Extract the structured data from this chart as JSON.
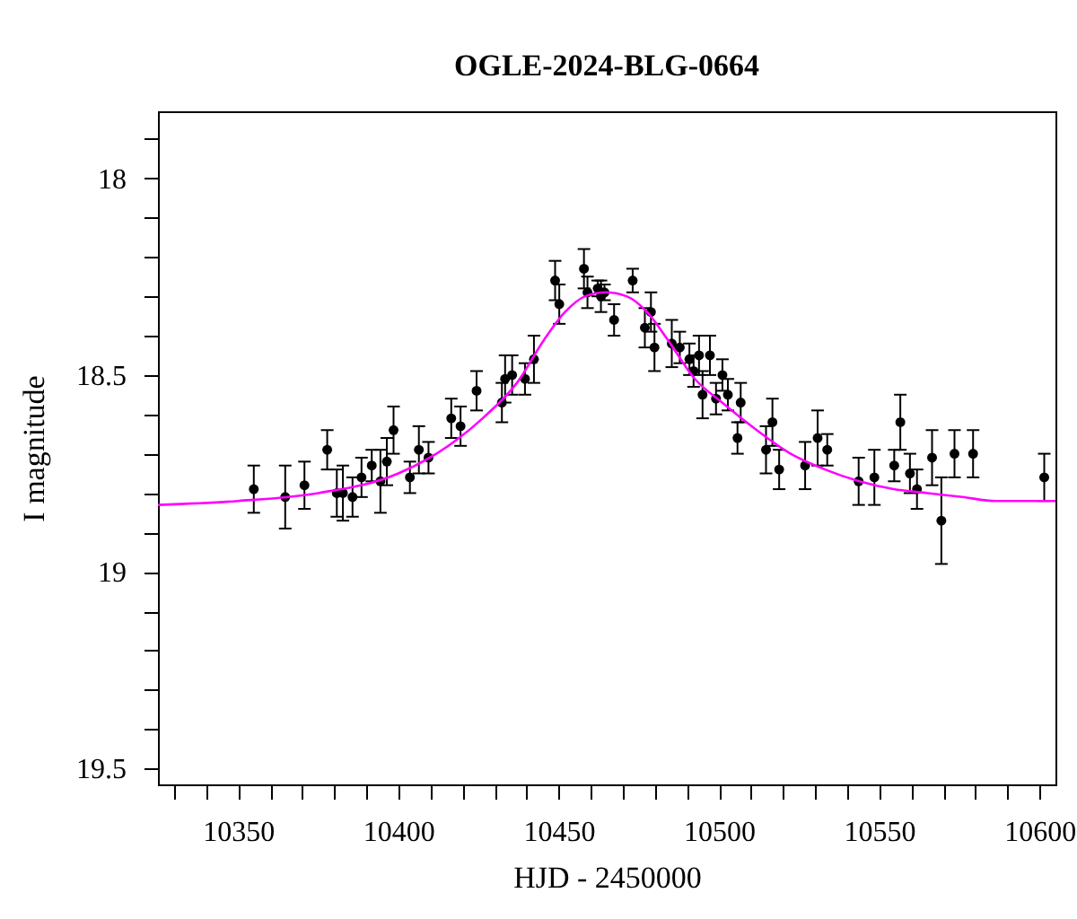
{
  "chart_data": {
    "type": "scatter",
    "title": "OGLE-2024-BLG-0664",
    "xlabel": "HJD - 2450000",
    "ylabel": "I magnitude",
    "xlim": [
      10325,
      10605
    ],
    "ylim": [
      19.54,
      17.83
    ],
    "xticks": [
      {
        "value": 10330,
        "label": null
      },
      {
        "value": 10340,
        "label": null
      },
      10350,
      {
        "value": 10360,
        "label": null
      },
      {
        "value": 10370,
        "label": null
      },
      {
        "value": 10380,
        "label": null
      },
      {
        "value": 10390,
        "label": null
      },
      10400,
      {
        "value": 10410,
        "label": null
      },
      {
        "value": 10420,
        "label": null
      },
      {
        "value": 10430,
        "label": null
      },
      {
        "value": 10440,
        "label": null
      },
      10450,
      {
        "value": 10460,
        "label": null
      },
      {
        "value": 10470,
        "label": null
      },
      {
        "value": 10480,
        "label": null
      },
      {
        "value": 10490,
        "label": null
      },
      10500,
      {
        "value": 10510,
        "label": null
      },
      {
        "value": 10520,
        "label": null
      },
      {
        "value": 10530,
        "label": null
      },
      {
        "value": 10540,
        "label": null
      },
      10550,
      {
        "value": 10560,
        "label": null
      },
      {
        "value": 10570,
        "label": null
      },
      {
        "value": 10580,
        "label": null
      },
      {
        "value": 10590,
        "label": null
      },
      10600
    ],
    "yticks": [
      {
        "value": 17.9,
        "label": null
      },
      18,
      {
        "value": 18.1,
        "label": null
      },
      {
        "value": 18.2,
        "label": null
      },
      {
        "value": 18.3,
        "label": null
      },
      {
        "value": 18.4,
        "label": null
      },
      18.5,
      {
        "value": 18.6,
        "label": null
      },
      {
        "value": 18.7,
        "label": null
      },
      {
        "value": 18.8,
        "label": null
      },
      {
        "value": 18.9,
        "label": null
      },
      19,
      {
        "value": 19.1,
        "label": null
      },
      {
        "value": 19.2,
        "label": null
      },
      {
        "value": 19.3,
        "label": null
      },
      {
        "value": 19.4,
        "label": null
      },
      19.5
    ],
    "series": [
      {
        "color": "#000000",
        "marker": "circle",
        "x": [
          10354.9,
          10364.7,
          10370.7,
          10377.8,
          10380.8,
          10382.7,
          10385.7,
          10388.5,
          10391.7,
          10394.4,
          10396.4,
          10398.5,
          10403.6,
          10406.4,
          10409.4,
          10416.5,
          10419.4,
          10424.4,
          10432.3,
          10433.3,
          10435.5,
          10439.5,
          10442.3,
          10448.9,
          10450.2,
          10457.9,
          10459.0,
          10462.2,
          10463.2,
          10464.3,
          10467.3,
          10473.1,
          10476.9,
          10478.8,
          10479.9,
          10485.3,
          10487.8,
          10490.8,
          10492.1,
          10493.8,
          10494.9,
          10497.2,
          10499.1,
          10501.1,
          10502.8,
          10506.8,
          10505.8,
          10514.7,
          10516.7,
          10518.8,
          10526.9,
          10530.8,
          10533.8,
          10543.6,
          10548.5,
          10554.7,
          10556.6,
          10559.6,
          10561.8,
          10566.5,
          10569.4,
          10573.5,
          10579.3,
          10601.5
        ],
        "values": [
          18.79,
          18.81,
          18.78,
          18.69,
          18.8,
          18.8,
          18.81,
          18.76,
          18.73,
          18.77,
          18.72,
          18.64,
          18.76,
          18.69,
          18.71,
          18.61,
          18.63,
          18.54,
          18.57,
          18.51,
          18.5,
          18.51,
          18.46,
          18.26,
          18.32,
          18.23,
          18.29,
          18.28,
          18.3,
          18.29,
          18.36,
          18.26,
          18.38,
          18.34,
          18.43,
          18.42,
          18.43,
          18.46,
          18.49,
          18.45,
          18.55,
          18.45,
          18.56,
          18.5,
          18.55,
          18.57,
          18.66,
          18.69,
          18.62,
          18.74,
          18.73,
          18.66,
          18.69,
          18.77,
          18.76,
          18.73,
          18.62,
          18.75,
          18.79,
          18.71,
          18.87,
          18.7,
          18.7,
          18.76
        ],
        "errors": [
          0.06,
          0.08,
          0.06,
          0.05,
          0.06,
          0.07,
          0.05,
          0.05,
          0.04,
          0.08,
          0.06,
          0.06,
          0.04,
          0.06,
          0.04,
          0.05,
          0.05,
          0.05,
          0.05,
          0.06,
          0.05,
          0.04,
          0.06,
          0.05,
          0.05,
          0.05,
          0.04,
          0.02,
          0.04,
          0.02,
          0.04,
          0.03,
          0.05,
          0.05,
          0.06,
          0.06,
          0.04,
          0.04,
          0.04,
          0.05,
          0.06,
          0.05,
          0.04,
          0.04,
          0.04,
          0.05,
          0.04,
          0.06,
          0.06,
          0.05,
          0.06,
          0.07,
          0.04,
          0.06,
          0.07,
          0.04,
          0.07,
          0.05,
          0.05,
          0.07,
          0.11,
          0.06,
          0.06,
          0.06
        ]
      },
      {
        "type": "line",
        "color": "#ff00ff",
        "line_style": "solid",
        "x": [
          10325,
          10350,
          10375,
          10400,
          10415.6,
          10426.3,
          10437,
          10445.5,
          10452,
          10458.3,
          10464.7,
          10471.2,
          10477.6,
          10484,
          10492.5,
          10501,
          10511.8,
          10522.4,
          10533.1,
          10543.8,
          10554.5,
          10565.2,
          10575.9,
          10586.5,
          10605
        ],
        "values": [
          18.83,
          18.82,
          18.8,
          18.75,
          18.68,
          18.61,
          18.52,
          18.41,
          18.34,
          18.3,
          18.29,
          18.3,
          18.34,
          18.41,
          18.51,
          18.57,
          18.64,
          18.7,
          18.74,
          18.77,
          18.79,
          18.8,
          18.81,
          18.82,
          18.82
        ]
      }
    ]
  }
}
